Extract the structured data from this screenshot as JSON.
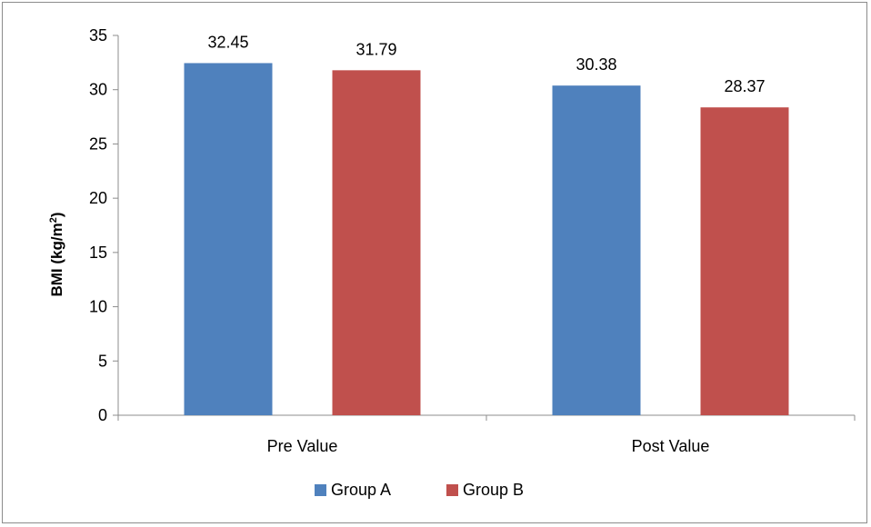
{
  "chart_data": {
    "type": "bar",
    "categories": [
      "Pre Value",
      "Post Value"
    ],
    "series": [
      {
        "name": "Group A",
        "values": [
          32.45,
          30.38
        ],
        "color": "#4f81bd"
      },
      {
        "name": "Group B",
        "values": [
          31.79,
          28.37
        ],
        "color": "#c0504d"
      }
    ],
    "ylabel": "BMI (kg/m",
    "ylabel_superscript": "2",
    "ylabel_suffix": ")",
    "ylim": [
      0,
      35
    ],
    "yticks": [
      0,
      5,
      10,
      15,
      20,
      25,
      30,
      35
    ],
    "grid": false,
    "legend_position": "bottom",
    "data_labels": true
  }
}
